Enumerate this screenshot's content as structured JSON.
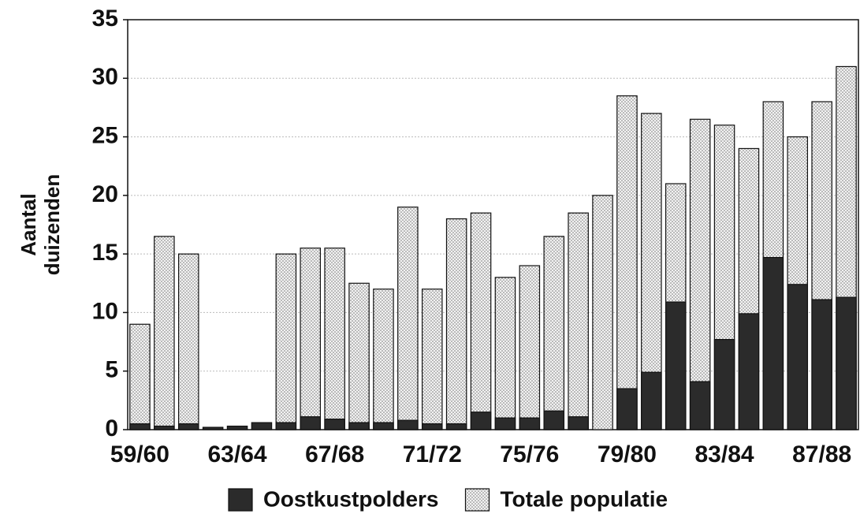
{
  "chart_data": {
    "type": "bar",
    "y_label": [
      "Aantal",
      "duizenden"
    ],
    "categories": [
      "59/60",
      null,
      null,
      null,
      "63/64",
      null,
      null,
      null,
      "67/68",
      null,
      null,
      null,
      "71/72",
      null,
      null,
      null,
      "75/76",
      null,
      null,
      null,
      "79/80",
      null,
      null,
      null,
      "83/84",
      null,
      null,
      null,
      "87/88",
      null
    ],
    "series": [
      {
        "name": "Totale populatie",
        "color": "#d4d4d4",
        "pattern": "dots",
        "values": [
          9,
          16.5,
          15,
          null,
          null,
          null,
          15,
          15.5,
          15.5,
          12.5,
          12,
          19,
          12,
          18,
          18.5,
          13,
          14,
          16.5,
          18.5,
          20,
          28.5,
          27,
          21,
          26.5,
          26,
          24,
          28,
          25,
          28,
          31
        ]
      },
      {
        "name": "Oostkustpolders",
        "color": "#2b2b2b",
        "values": [
          0.5,
          0.3,
          0.5,
          0.2,
          0.3,
          0.6,
          0.6,
          1.1,
          0.9,
          0.6,
          0.6,
          0.8,
          0.5,
          0.5,
          1.5,
          1.0,
          1.0,
          1.6,
          1.1,
          0,
          3.5,
          4.9,
          10.9,
          4.1,
          7.7,
          9.9,
          14.7,
          12.4,
          11.1,
          11.3
        ]
      }
    ],
    "legend_order": [
      "Oostkustpolders",
      "Totale populatie"
    ],
    "ylim": [
      0,
      35
    ],
    "yticks": [
      0,
      5,
      10,
      15,
      20,
      25,
      30,
      35
    ],
    "grid": true
  }
}
